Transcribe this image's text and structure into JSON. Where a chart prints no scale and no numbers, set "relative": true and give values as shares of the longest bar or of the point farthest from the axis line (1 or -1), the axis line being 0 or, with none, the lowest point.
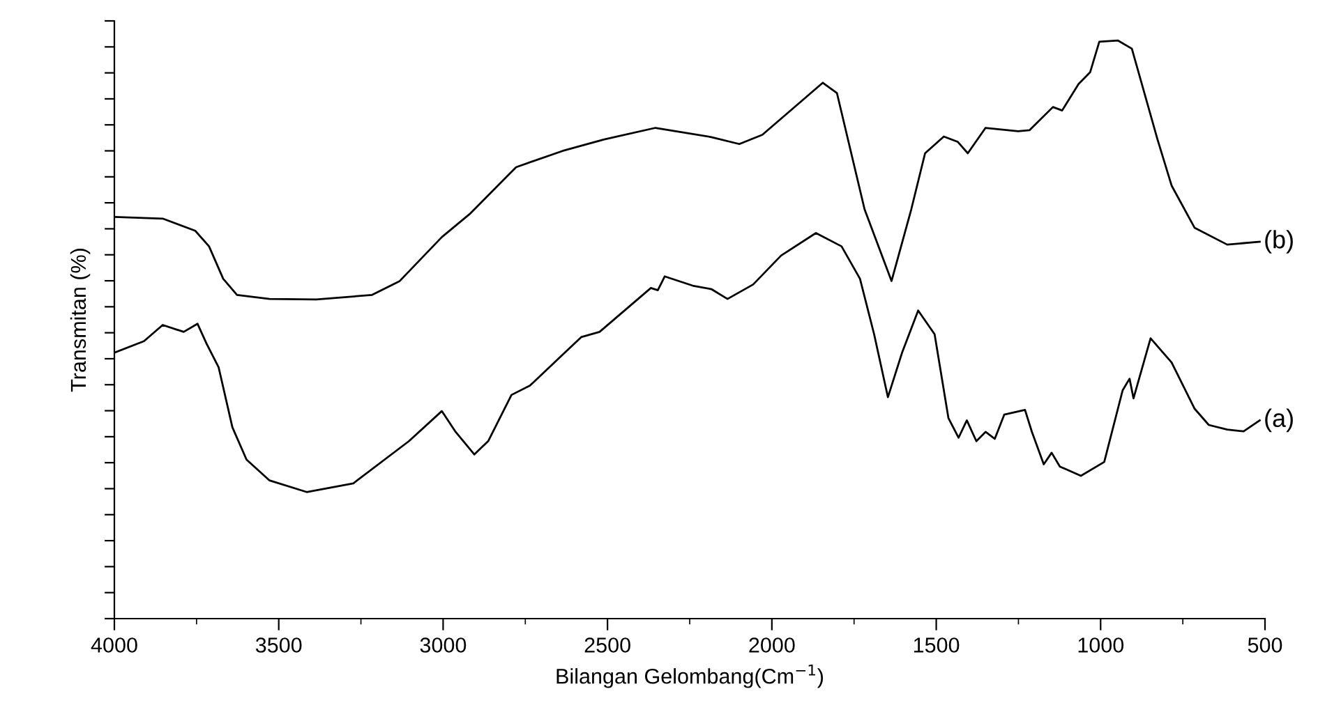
{
  "chart_data": {
    "type": "line",
    "relative": true,
    "xlabel": "Bilangan Gelombang(Cm$^{−1}$)",
    "ylabel": "Transmitan (%)",
    "xlim": [
      4000,
      500
    ],
    "xticks": [
      4000,
      3500,
      3000,
      2500,
      2000,
      1500,
      1000,
      500
    ],
    "grid": false,
    "series": [
      {
        "name": "(b)",
        "color": "#000000",
        "x": [
          4000,
          3853,
          3754,
          3712,
          3669,
          3627,
          3528,
          3386,
          3216,
          3132,
          3004,
          2919,
          2778,
          2637,
          2510,
          2354,
          2312,
          2184,
          2099,
          2029,
          1845,
          1802,
          1718,
          1636,
          1576,
          1534,
          1477,
          1435,
          1404,
          1350,
          1251,
          1216,
          1145,
          1117,
          1067,
          1032,
          1004,
          947,
          905,
          827,
          784,
          714,
          615,
          516
        ],
        "values": [
          0.695,
          0.692,
          0.671,
          0.644,
          0.588,
          0.56,
          0.553,
          0.552,
          0.56,
          0.584,
          0.66,
          0.7,
          0.781,
          0.809,
          0.829,
          0.849,
          0.845,
          0.833,
          0.821,
          0.837,
          0.927,
          0.909,
          0.708,
          0.584,
          0.708,
          0.805,
          0.834,
          0.825,
          0.805,
          0.849,
          0.843,
          0.845,
          0.885,
          0.879,
          0.925,
          0.945,
          0.998,
          1.0,
          0.986,
          0.829,
          0.749,
          0.676,
          0.647,
          0.652
        ]
      },
      {
        "name": "(a)",
        "color": "#000000",
        "x": [
          4000,
          3910,
          3853,
          3789,
          3747,
          3719,
          3683,
          3641,
          3598,
          3528,
          3415,
          3273,
          3104,
          3004,
          2962,
          2905,
          2863,
          2792,
          2736,
          2580,
          2524,
          2368,
          2347,
          2326,
          2241,
          2184,
          2135,
          2057,
          1972,
          1866,
          1788,
          1732,
          1689,
          1647,
          1604,
          1555,
          1505,
          1463,
          1432,
          1407,
          1378,
          1350,
          1322,
          1293,
          1230,
          1209,
          1173,
          1149,
          1124,
          1060,
          989,
          933,
          912,
          900,
          848,
          784,
          714,
          671,
          615,
          565,
          516
        ],
        "values": [
          0.46,
          0.48,
          0.508,
          0.496,
          0.51,
          0.475,
          0.435,
          0.331,
          0.275,
          0.239,
          0.219,
          0.234,
          0.307,
          0.359,
          0.323,
          0.284,
          0.307,
          0.387,
          0.403,
          0.487,
          0.496,
          0.572,
          0.568,
          0.592,
          0.576,
          0.57,
          0.553,
          0.578,
          0.628,
          0.667,
          0.644,
          0.588,
          0.492,
          0.383,
          0.46,
          0.533,
          0.492,
          0.347,
          0.313,
          0.343,
          0.307,
          0.323,
          0.311,
          0.353,
          0.361,
          0.323,
          0.267,
          0.287,
          0.263,
          0.247,
          0.271,
          0.395,
          0.415,
          0.381,
          0.485,
          0.443,
          0.363,
          0.335,
          0.327,
          0.324,
          0.343
        ]
      }
    ]
  }
}
